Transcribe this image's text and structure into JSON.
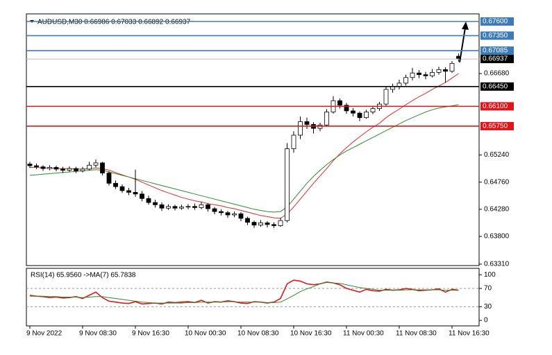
{
  "chart_data": [
    {
      "type": "candlestick",
      "title": "AUDUSD,M30  0.66986 0.67033 0.66892 0.66937",
      "categories": [
        "9 Nov 2022",
        null,
        null,
        null,
        null,
        null,
        null,
        null,
        "9 Nov 08:30",
        null,
        null,
        null,
        null,
        null,
        null,
        null,
        "9 Nov 16:30",
        null,
        null,
        null,
        null,
        null,
        null,
        null,
        "10 Nov 00:30",
        null,
        null,
        null,
        null,
        null,
        null,
        null,
        "10 Nov 08:30",
        null,
        null,
        null,
        null,
        null,
        null,
        null,
        "10 Nov 16:30",
        null,
        null,
        null,
        null,
        null,
        null,
        null,
        "11 Nov 00:30",
        null,
        null,
        null,
        null,
        null,
        null,
        null,
        "11 Nov 08:30",
        null,
        null,
        null,
        null,
        null,
        null,
        null,
        "11 Nov 16:30",
        null
      ],
      "open": [
        0.6508,
        0.6505,
        0.6503,
        0.65,
        0.6502,
        0.6499,
        0.6497,
        0.65,
        0.6496,
        0.6499,
        0.6506,
        0.651,
        0.6492,
        0.6474,
        0.6468,
        0.6461,
        0.6458,
        0.6455,
        0.6447,
        0.644,
        0.6436,
        0.643,
        0.6433,
        0.643,
        0.6432,
        0.6433,
        0.6431,
        0.6436,
        0.6429,
        0.6424,
        0.6422,
        0.6418,
        0.642,
        0.6412,
        0.6405,
        0.64,
        0.6404,
        0.6401,
        0.6399,
        0.6408,
        0.6535,
        0.6559,
        0.6583,
        0.6578,
        0.6571,
        0.6577,
        0.66,
        0.662,
        0.6612,
        0.6602,
        0.6598,
        0.659,
        0.66,
        0.6606,
        0.6614,
        0.664,
        0.6645,
        0.6651,
        0.6661,
        0.6669,
        0.6666,
        0.6664,
        0.667,
        0.6675,
        0.6672,
        0.66986
      ],
      "high": [
        0.6512,
        0.6509,
        0.6506,
        0.6506,
        0.6505,
        0.6503,
        0.6504,
        0.6503,
        0.6503,
        0.6512,
        0.6516,
        0.6512,
        0.6495,
        0.6479,
        0.6472,
        0.6466,
        0.6498,
        0.646,
        0.6452,
        0.6445,
        0.644,
        0.6437,
        0.6436,
        0.6436,
        0.6437,
        0.6438,
        0.6441,
        0.6439,
        0.6432,
        0.6428,
        0.6425,
        0.6424,
        0.6423,
        0.6415,
        0.6408,
        0.6409,
        0.6407,
        0.6405,
        0.6413,
        0.6545,
        0.6566,
        0.6592,
        0.659,
        0.6582,
        0.6581,
        0.6605,
        0.6628,
        0.6624,
        0.6616,
        0.6607,
        0.6601,
        0.6604,
        0.661,
        0.6618,
        0.6646,
        0.665,
        0.6657,
        0.6666,
        0.6678,
        0.6674,
        0.6671,
        0.6676,
        0.668,
        0.6679,
        0.669,
        0.67033
      ],
      "low": [
        0.6501,
        0.6499,
        0.6496,
        0.6497,
        0.6495,
        0.6492,
        0.6494,
        0.6492,
        0.6493,
        0.6497,
        0.6502,
        0.6488,
        0.647,
        0.6464,
        0.6457,
        0.6453,
        0.645,
        0.6442,
        0.6436,
        0.6431,
        0.6425,
        0.6427,
        0.6426,
        0.6427,
        0.6428,
        0.6427,
        0.6428,
        0.6424,
        0.6419,
        0.6417,
        0.6413,
        0.6414,
        0.6407,
        0.64,
        0.6395,
        0.6397,
        0.6396,
        0.6395,
        0.6397,
        0.6405,
        0.6528,
        0.6552,
        0.657,
        0.6562,
        0.6566,
        0.6574,
        0.6597,
        0.6606,
        0.6597,
        0.6592,
        0.6584,
        0.6588,
        0.6596,
        0.6602,
        0.6611,
        0.6634,
        0.664,
        0.6647,
        0.6656,
        0.666,
        0.6658,
        0.6661,
        0.6666,
        0.6652,
        0.6669,
        0.66892
      ],
      "close": [
        0.6505,
        0.6503,
        0.65,
        0.6502,
        0.6499,
        0.6497,
        0.65,
        0.6496,
        0.6499,
        0.6506,
        0.651,
        0.6492,
        0.6474,
        0.6468,
        0.6461,
        0.6458,
        0.6455,
        0.6447,
        0.644,
        0.6436,
        0.643,
        0.6433,
        0.643,
        0.6432,
        0.6433,
        0.6431,
        0.6436,
        0.6429,
        0.6424,
        0.6422,
        0.6418,
        0.642,
        0.6412,
        0.6405,
        0.64,
        0.6404,
        0.6401,
        0.6399,
        0.6408,
        0.6535,
        0.6559,
        0.6583,
        0.6578,
        0.6571,
        0.6577,
        0.66,
        0.662,
        0.6612,
        0.6602,
        0.6598,
        0.659,
        0.66,
        0.6606,
        0.6614,
        0.664,
        0.6645,
        0.6651,
        0.6661,
        0.6669,
        0.6666,
        0.6664,
        0.667,
        0.6675,
        0.6672,
        0.6686,
        0.66937
      ],
      "up_color": "#ffffff",
      "down_color": "#000000",
      "series": [
        {
          "color": "#e0282a",
          "values": [
            0.6502,
            0.6502,
            0.6501,
            0.6501,
            0.65,
            0.65,
            0.65,
            0.6499,
            0.6499,
            0.65,
            0.6501,
            0.65,
            0.6497,
            0.6493,
            0.6489,
            0.6485,
            0.6481,
            0.6476,
            0.6471,
            0.6466,
            0.6461,
            0.6457,
            0.6453,
            0.6449,
            0.6446,
            0.6443,
            0.6441,
            0.6438,
            0.6436,
            0.6434,
            0.6431,
            0.6429,
            0.6426,
            0.6423,
            0.642,
            0.6417,
            0.6415,
            0.6413,
            0.6412,
            0.642,
            0.6432,
            0.6446,
            0.646,
            0.6474,
            0.6487,
            0.65,
            0.6514,
            0.6526,
            0.6537,
            0.6547,
            0.6556,
            0.6565,
            0.6573,
            0.658,
            0.659,
            0.6598,
            0.6605,
            0.6613,
            0.662,
            0.6627,
            0.6633,
            0.664,
            0.6646,
            0.6652,
            0.666,
            0.6668
          ]
        },
        {
          "color": "#2e8b2e",
          "values": [
            0.6488,
            0.6489,
            0.649,
            0.6491,
            0.6492,
            0.6493,
            0.6494,
            0.6495,
            0.6496,
            0.6497,
            0.6498,
            0.6497,
            0.6494,
            0.6491,
            0.6488,
            0.6485,
            0.6482,
            0.6479,
            0.6476,
            0.6473,
            0.647,
            0.6467,
            0.6464,
            0.6461,
            0.6458,
            0.6455,
            0.6452,
            0.6449,
            0.6446,
            0.6443,
            0.644,
            0.6437,
            0.6434,
            0.6431,
            0.6428,
            0.6426,
            0.6424,
            0.6423,
            0.6424,
            0.6432,
            0.6446,
            0.646,
            0.6474,
            0.6486,
            0.6497,
            0.6507,
            0.6516,
            0.6524,
            0.6531,
            0.6537,
            0.6543,
            0.6549,
            0.6555,
            0.6561,
            0.6567,
            0.6573,
            0.6579,
            0.6585,
            0.659,
            0.6595,
            0.66,
            0.6604,
            0.6607,
            0.6609,
            0.6611,
            0.6613
          ]
        }
      ],
      "levels": [
        {
          "value": 0.676,
          "label": "0.67600",
          "color": "#3d7ab8"
        },
        {
          "value": 0.6735,
          "label": "0.67350",
          "color": "#3d7ab8"
        },
        {
          "value": 0.67085,
          "label": "0.67085",
          "color": "#3d7ab8"
        },
        {
          "value": 0.6645,
          "label": "0.66450",
          "color": "#000000"
        },
        {
          "value": 0.661,
          "label": "0.66100",
          "color": "#e0141a"
        },
        {
          "value": 0.6575,
          "label": "0.65750",
          "color": "#e0141a"
        }
      ],
      "price_label": {
        "value": 0.66937,
        "label": "0.66937"
      },
      "ylim": [
        0.63285,
        0.67735
      ],
      "yticks": [
        {
          "value": 0.6331,
          "label": "0.63310"
        },
        {
          "value": 0.638,
          "label": "0.63800"
        },
        {
          "value": 0.6428,
          "label": "0.64280"
        },
        {
          "value": 0.6476,
          "label": "0.64760"
        },
        {
          "value": 0.6524,
          "label": "0.65240"
        },
        {
          "value": 0.6668,
          "label": "0.66680"
        }
      ]
    },
    {
      "type": "line",
      "title": "RSI(14) 65.9560  ->MA(7) 65.7838",
      "series": [
        {
          "color": "#e0141a",
          "values": [
            55,
            53,
            52,
            50,
            51,
            49,
            50,
            52,
            48,
            55,
            62,
            50,
            42,
            40,
            38,
            37,
            41,
            36,
            37,
            38,
            36,
            40,
            39,
            40,
            41,
            39,
            44,
            38,
            41,
            40,
            43,
            41,
            38,
            37,
            41,
            40,
            38,
            40,
            48,
            80,
            88,
            86,
            80,
            78,
            80,
            84,
            82,
            78,
            70,
            66,
            62,
            68,
            65,
            64,
            68,
            66,
            67,
            70,
            68,
            65,
            66,
            67,
            69,
            62,
            68,
            65.956
          ]
        },
        {
          "color": "#2e8b2e",
          "values": [
            53,
            53,
            53,
            52,
            52,
            51,
            51,
            51,
            50,
            51,
            52,
            52,
            50,
            48,
            46,
            44,
            42,
            40,
            39,
            38,
            38,
            38,
            38,
            38,
            39,
            39,
            40,
            40,
            40,
            40,
            41,
            41,
            40,
            40,
            40,
            40,
            39,
            39,
            40,
            47,
            55,
            63,
            69,
            74,
            80,
            83,
            82,
            81,
            78,
            75,
            72,
            70,
            68,
            66,
            66,
            66,
            66,
            67,
            67,
            67,
            67,
            67,
            67,
            66,
            66,
            65.7838
          ]
        }
      ],
      "levels": [
        70,
        30
      ],
      "ylim": [
        -12,
        114
      ],
      "yticks": [
        0,
        30,
        70,
        100
      ]
    }
  ]
}
